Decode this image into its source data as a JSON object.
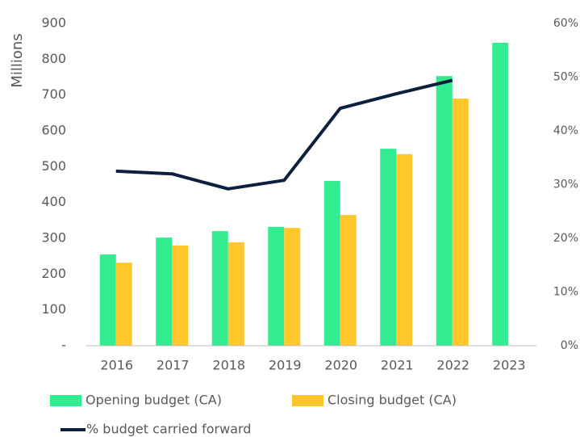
{
  "chart_data": {
    "type": "bar",
    "y_label": "Millions",
    "categories": [
      "2016",
      "2017",
      "2018",
      "2019",
      "2020",
      "2021",
      "2022",
      "2023"
    ],
    "series": [
      {
        "name": "Opening budget (CA)",
        "color": "#33eb91",
        "values": [
          255,
          302,
          320,
          332,
          460,
          550,
          753,
          846
        ]
      },
      {
        "name": "Closing budget (CA)",
        "color": "#ffc72c",
        "values": [
          232,
          280,
          289,
          329,
          365,
          535,
          690,
          null
        ]
      },
      {
        "name": "% budget carried forward",
        "color": "#0c1f3c",
        "type": "line",
        "axis": "y2",
        "values": [
          32.5,
          32.0,
          29.2,
          30.8,
          44.2,
          46.9,
          49.4,
          null
        ]
      }
    ],
    "ylim": [
      0,
      900
    ],
    "yticks": [
      {
        "value": 0,
        "label": "-"
      },
      100,
      200,
      300,
      400,
      500,
      600,
      700,
      800,
      900
    ],
    "y2lim": [
      0,
      60
    ],
    "y2ticks": [
      {
        "value": 0,
        "label": "0%"
      },
      {
        "value": 10,
        "label": "10%"
      },
      {
        "value": 20,
        "label": "20%"
      },
      {
        "value": 30,
        "label": "30%"
      },
      {
        "value": 40,
        "label": "40%"
      },
      {
        "value": 50,
        "label": "50%"
      },
      {
        "value": 60,
        "label": "60%"
      }
    ],
    "grid": false,
    "legend": "bottom"
  }
}
